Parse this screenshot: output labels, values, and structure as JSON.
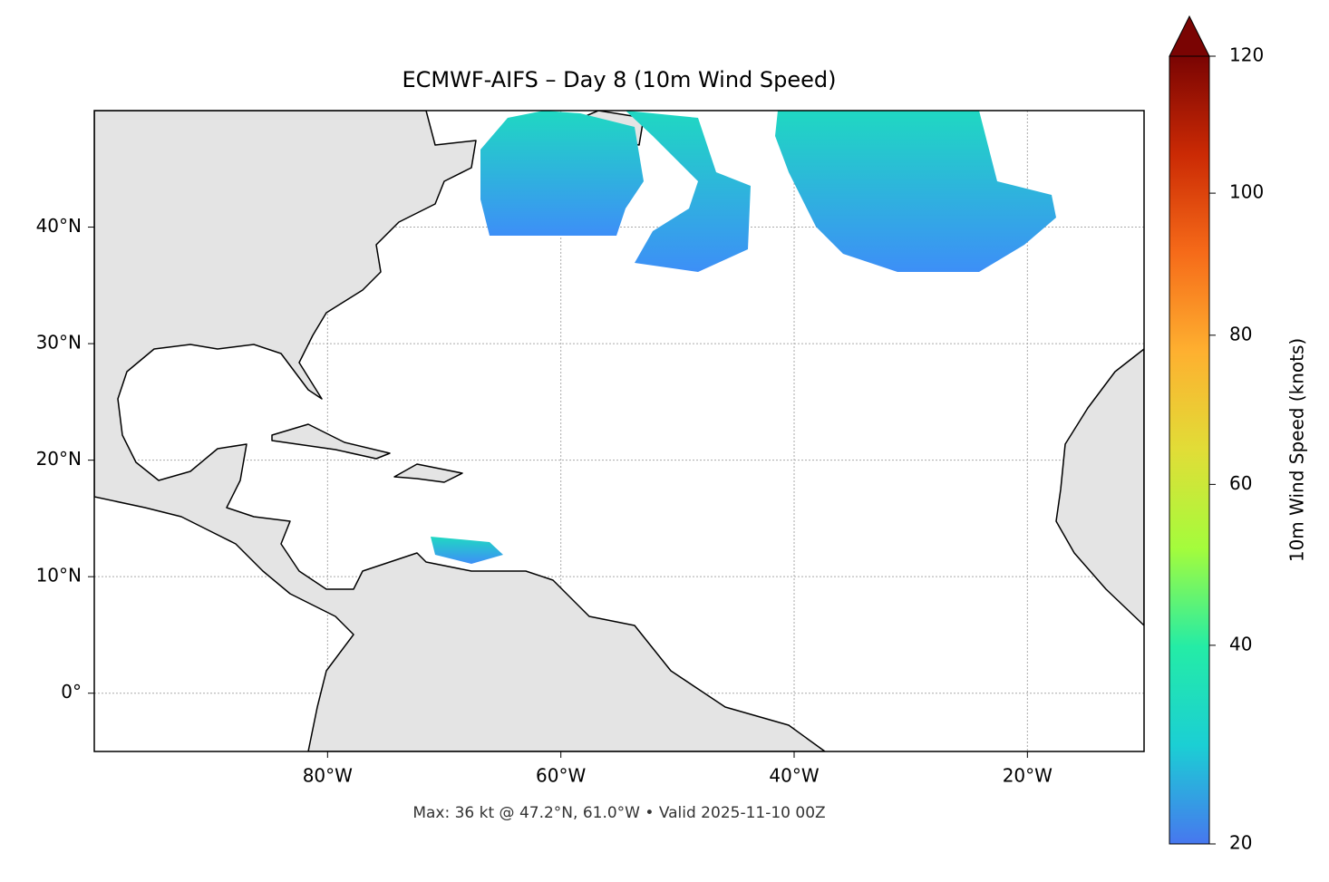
{
  "title": "ECMWF-AIFS – Day 8 (10m Wind Speed)",
  "footer": "Max: 36 kt @ 47.2°N, 61.0°W • Valid 2025-11-10 00Z",
  "map": {
    "lonlim": [
      -100,
      -10
    ],
    "latlim": [
      -5,
      50
    ],
    "grid": true,
    "lon_ticks": [
      {
        "value": -80,
        "label": "80°W"
      },
      {
        "value": -60,
        "label": "60°W"
      },
      {
        "value": -40,
        "label": "40°W"
      },
      {
        "value": -20,
        "label": "20°W"
      }
    ],
    "lat_ticks": [
      {
        "value": 0,
        "label": "0°"
      },
      {
        "value": 10,
        "label": "10°N"
      },
      {
        "value": 20,
        "label": "20°N"
      },
      {
        "value": 30,
        "label": "30°N"
      },
      {
        "value": 40,
        "label": "40°N"
      }
    ]
  },
  "colorbar": {
    "label": "10m Wind Speed (knots)",
    "lim": [
      20,
      120
    ],
    "ticks": [
      20,
      40,
      60,
      80,
      100,
      120
    ],
    "extend": "max",
    "colors": [
      "#4777ef",
      "#1bcfd4",
      "#24eca6",
      "#a4fc3c",
      "#e1dd37",
      "#feb030",
      "#f66b19",
      "#cb2a04",
      "#7a0403"
    ]
  }
}
